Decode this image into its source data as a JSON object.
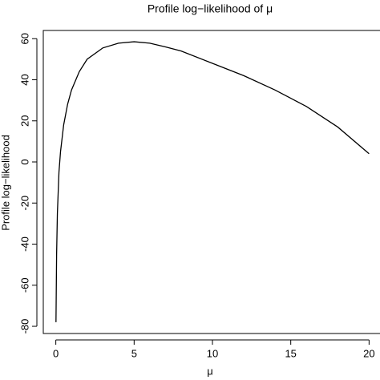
{
  "chart_data": {
    "type": "line",
    "title": "Profile log−likelihood of μ",
    "x_label": "μ",
    "y_label": "Profile log−likelihood",
    "x": [
      0.01,
      0.05,
      0.1,
      0.2,
      0.3,
      0.5,
      0.75,
      1,
      1.5,
      2,
      3,
      4,
      5,
      6,
      7,
      8,
      10,
      12,
      14,
      15,
      16,
      18,
      20
    ],
    "series": [
      {
        "name": "Profile log−likelihood",
        "color": "#000000",
        "values": [
          -78,
          -45,
          -25,
          -5,
          5,
          18,
          28,
          35,
          44,
          50,
          55.5,
          57.8,
          58.5,
          57.8,
          56,
          54,
          48,
          42,
          35,
          31,
          27,
          17,
          4
        ]
      }
    ],
    "xlim": [
      -0.8,
      20.8
    ],
    "ylim": [
      -83.5,
      64
    ],
    "xticks": [
      0,
      5,
      10,
      15,
      20
    ],
    "yticks": [
      -80,
      -60,
      -40,
      -20,
      0,
      20,
      40,
      60
    ]
  }
}
